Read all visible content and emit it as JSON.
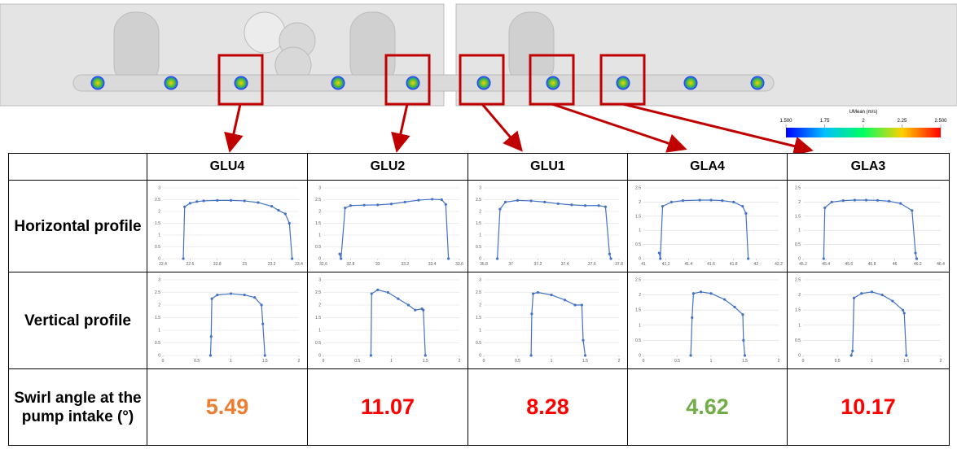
{
  "render": {
    "colorbar": {
      "title": "UMean (m/s)",
      "lim": [
        1.5,
        2.5
      ],
      "ticks": [
        {
          "value": 1.5,
          "label": "1.500"
        },
        1.75,
        2,
        2.25,
        {
          "value": 2.5,
          "label": "2.500"
        }
      ]
    }
  },
  "table": {
    "header": [
      "GLU4",
      "GLU2",
      "GLU1",
      "GLA4",
      "GLA3"
    ],
    "row_labels": [
      "Horizontal profile",
      "Vertical profile",
      "Swirl angle at the pump intake (°)"
    ],
    "horizontal": [
      {
        "type": "line",
        "color": "#4472c4",
        "x": [
          22.55,
          22.56,
          22.6,
          22.65,
          22.7,
          22.8,
          22.9,
          23.0,
          23.1,
          23.2,
          23.25,
          23.3,
          23.33,
          23.35
        ],
        "values": [
          0,
          2.2,
          2.35,
          2.42,
          2.45,
          2.47,
          2.47,
          2.45,
          2.38,
          2.22,
          2.05,
          1.9,
          1.5,
          0
        ],
        "xlim": [
          22.4,
          23.4
        ],
        "xticks": [
          22.4,
          22.6,
          22.8,
          23,
          23.2,
          23.4
        ],
        "ylim": [
          0,
          3
        ],
        "yticks": [
          0,
          0.5,
          1,
          1.5,
          2,
          2.5,
          3
        ]
      },
      {
        "type": "line",
        "color": "#4472c4",
        "x": [
          32.72,
          32.73,
          32.76,
          32.8,
          32.9,
          33.0,
          33.1,
          33.2,
          33.3,
          33.4,
          33.47,
          33.5,
          33.52
        ],
        "values": [
          0.2,
          0,
          2.15,
          2.25,
          2.27,
          2.28,
          2.32,
          2.4,
          2.48,
          2.52,
          2.5,
          2.3,
          0
        ],
        "xlim": [
          32.6,
          33.6
        ],
        "xticks": [
          32.6,
          32.8,
          33,
          33.2,
          33.4,
          33.6
        ],
        "ylim": [
          0,
          3
        ],
        "yticks": [
          0,
          0.5,
          1,
          1.5,
          2,
          2.5,
          3
        ]
      },
      {
        "type": "line",
        "color": "#4472c4",
        "x": [
          36.9,
          36.92,
          36.96,
          37.05,
          37.15,
          37.25,
          37.35,
          37.45,
          37.55,
          37.65,
          37.7,
          37.73,
          37.74
        ],
        "values": [
          0,
          2.1,
          2.4,
          2.47,
          2.45,
          2.4,
          2.33,
          2.28,
          2.25,
          2.25,
          2.2,
          0.2,
          0
        ],
        "xlim": [
          36.8,
          37.8
        ],
        "xticks": [
          36.8,
          37,
          37.2,
          37.4,
          37.6,
          37.8
        ],
        "ylim": [
          0,
          3
        ],
        "yticks": [
          0,
          0.5,
          1,
          1.5,
          2,
          2.5,
          3
        ]
      },
      {
        "type": "line",
        "color": "#4472c4",
        "x": [
          41.14,
          41.15,
          41.17,
          41.25,
          41.35,
          41.5,
          41.6,
          41.7,
          41.8,
          41.88,
          41.91,
          41.93
        ],
        "values": [
          0.2,
          0,
          1.85,
          2.0,
          2.05,
          2.07,
          2.07,
          2.05,
          2.0,
          1.85,
          1.6,
          0
        ],
        "xlim": [
          41,
          42.2
        ],
        "xticks": [
          41,
          41.2,
          41.4,
          41.6,
          41.8,
          42,
          42.2
        ],
        "ylim": [
          0,
          2.5
        ],
        "yticks": [
          0,
          0.5,
          1,
          1.5,
          2,
          2.5
        ]
      },
      {
        "type": "line",
        "color": "#4472c4",
        "x": [
          45.38,
          45.39,
          45.45,
          45.55,
          45.65,
          45.75,
          45.85,
          45.95,
          46.05,
          46.15,
          46.18,
          46.19
        ],
        "values": [
          0,
          1.8,
          2.0,
          2.05,
          2.07,
          2.07,
          2.06,
          2.03,
          1.95,
          1.7,
          0.2,
          0
        ],
        "xlim": [
          45.2,
          46.4
        ],
        "xticks": [
          45.2,
          45.4,
          45.6,
          45.8,
          46,
          46.2,
          46.4
        ],
        "ylim": [
          0,
          2.5
        ],
        "yticks": [
          0,
          0.5,
          1,
          1.5,
          2,
          2.5
        ]
      }
    ],
    "vertical": [
      {
        "type": "line",
        "color": "#4472c4",
        "x": [
          0.7,
          0.71,
          0.72,
          0.8,
          1.0,
          1.2,
          1.35,
          1.45,
          1.47,
          1.5
        ],
        "values": [
          0,
          0.75,
          2.25,
          2.4,
          2.45,
          2.4,
          2.3,
          2.0,
          1.25,
          0
        ],
        "xlim": [
          0,
          2
        ],
        "xticks": [
          0,
          0.5,
          1,
          1.5,
          2
        ],
        "ylim": [
          0,
          3
        ],
        "yticks": [
          0,
          0.5,
          1,
          1.5,
          2,
          2.5,
          3
        ]
      },
      {
        "type": "line",
        "color": "#4472c4",
        "x": [
          0.7,
          0.71,
          0.8,
          0.95,
          1.1,
          1.25,
          1.35,
          1.45,
          1.47,
          1.5
        ],
        "values": [
          0,
          2.45,
          2.6,
          2.5,
          2.25,
          2.0,
          1.8,
          1.85,
          1.8,
          0
        ],
        "xlim": [
          0,
          2
        ],
        "xticks": [
          0,
          0.5,
          1,
          1.5,
          2
        ],
        "ylim": [
          0,
          3
        ],
        "yticks": [
          0,
          0.5,
          1,
          1.5,
          2,
          2.5,
          3
        ]
      },
      {
        "type": "line",
        "color": "#4472c4",
        "x": [
          0.7,
          0.71,
          0.73,
          0.8,
          1.0,
          1.2,
          1.35,
          1.45,
          1.47,
          1.5
        ],
        "values": [
          0,
          1.65,
          2.45,
          2.5,
          2.4,
          2.2,
          2.0,
          2.0,
          0.6,
          0
        ],
        "xlim": [
          0,
          2
        ],
        "xticks": [
          0,
          0.5,
          1,
          1.5,
          2
        ],
        "ylim": [
          0,
          3
        ],
        "yticks": [
          0,
          0.5,
          1,
          1.5,
          2,
          2.5,
          3
        ]
      },
      {
        "type": "line",
        "color": "#4472c4",
        "x": [
          0.7,
          0.72,
          0.74,
          0.85,
          1.0,
          1.2,
          1.35,
          1.47,
          1.48,
          1.5
        ],
        "values": [
          0,
          1.25,
          2.05,
          2.1,
          2.05,
          1.85,
          1.6,
          1.35,
          0.5,
          0
        ],
        "xlim": [
          0,
          2
        ],
        "xticks": [
          0,
          0.5,
          1,
          1.5,
          2
        ],
        "ylim": [
          0,
          2.5
        ],
        "yticks": [
          0,
          0.5,
          1,
          1.5,
          2,
          2.5
        ]
      },
      {
        "type": "line",
        "color": "#4472c4",
        "x": [
          0.7,
          0.72,
          0.74,
          0.85,
          1.0,
          1.15,
          1.3,
          1.45,
          1.47,
          1.5
        ],
        "values": [
          0,
          0.15,
          1.9,
          2.05,
          2.1,
          2.0,
          1.8,
          1.5,
          1.4,
          0
        ],
        "xlim": [
          0,
          2
        ],
        "xticks": [
          0,
          0.5,
          1,
          1.5,
          2
        ],
        "ylim": [
          0,
          2.5
        ],
        "yticks": [
          0,
          0.5,
          1,
          1.5,
          2,
          2.5
        ]
      }
    ],
    "swirl": {
      "values": [
        5.49,
        11.07,
        8.28,
        4.62,
        10.17
      ],
      "colors": [
        "#ed7d31",
        "#ff0000",
        "#ff0000",
        "#70ad47",
        "#ff0000"
      ]
    }
  }
}
